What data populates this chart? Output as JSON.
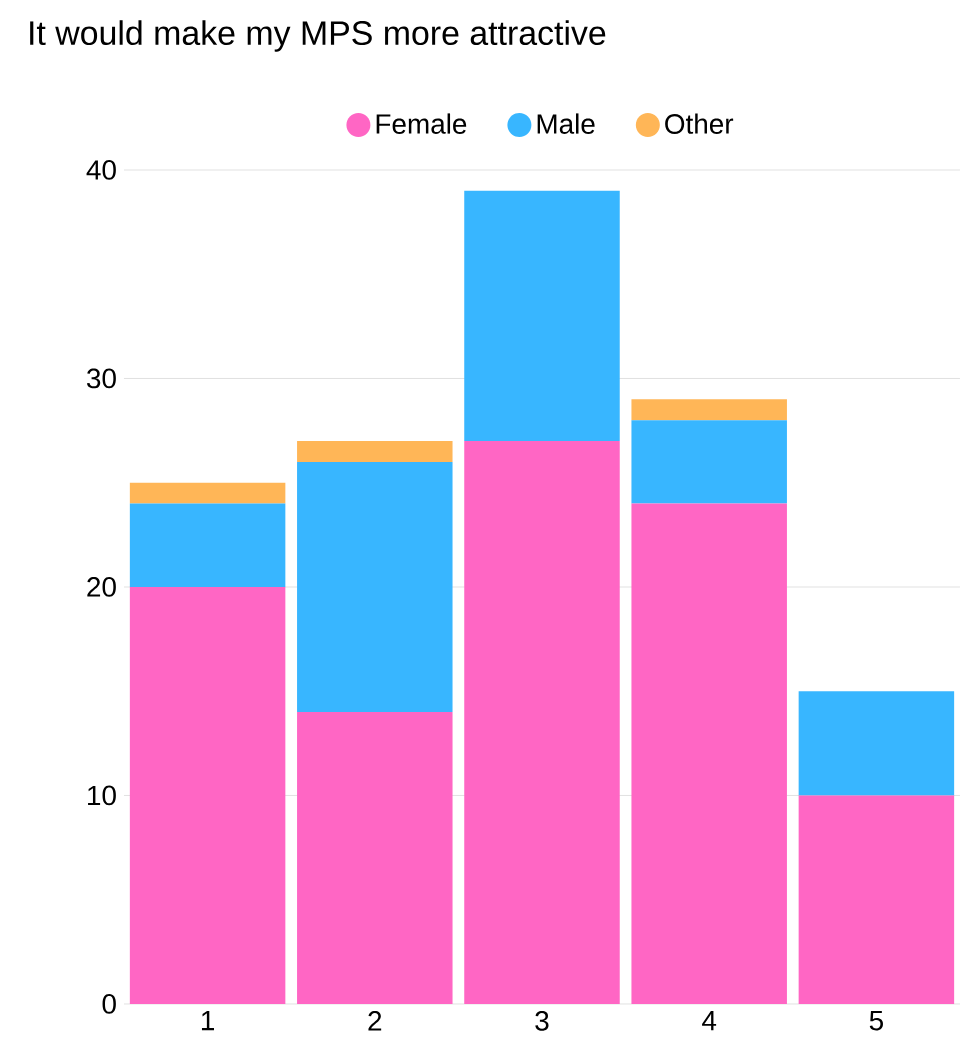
{
  "chart_data": {
    "type": "bar",
    "stacked": true,
    "title": "It would make my MPS more attractive",
    "categories": [
      "1",
      "2",
      "3",
      "4",
      "5"
    ],
    "series": [
      {
        "name": "Female",
        "color": "#ff66c4",
        "values": [
          20,
          14,
          27,
          24,
          10
        ]
      },
      {
        "name": "Male",
        "color": "#38b6ff",
        "values": [
          4,
          12,
          12,
          4,
          5
        ]
      },
      {
        "name": "Other",
        "color": "#ffb657",
        "values": [
          1,
          1,
          null,
          1,
          null
        ]
      }
    ],
    "ylim": [
      0,
      40
    ],
    "yticks": [
      0,
      10,
      20,
      30,
      40
    ],
    "grid": "y",
    "legend": "top"
  }
}
